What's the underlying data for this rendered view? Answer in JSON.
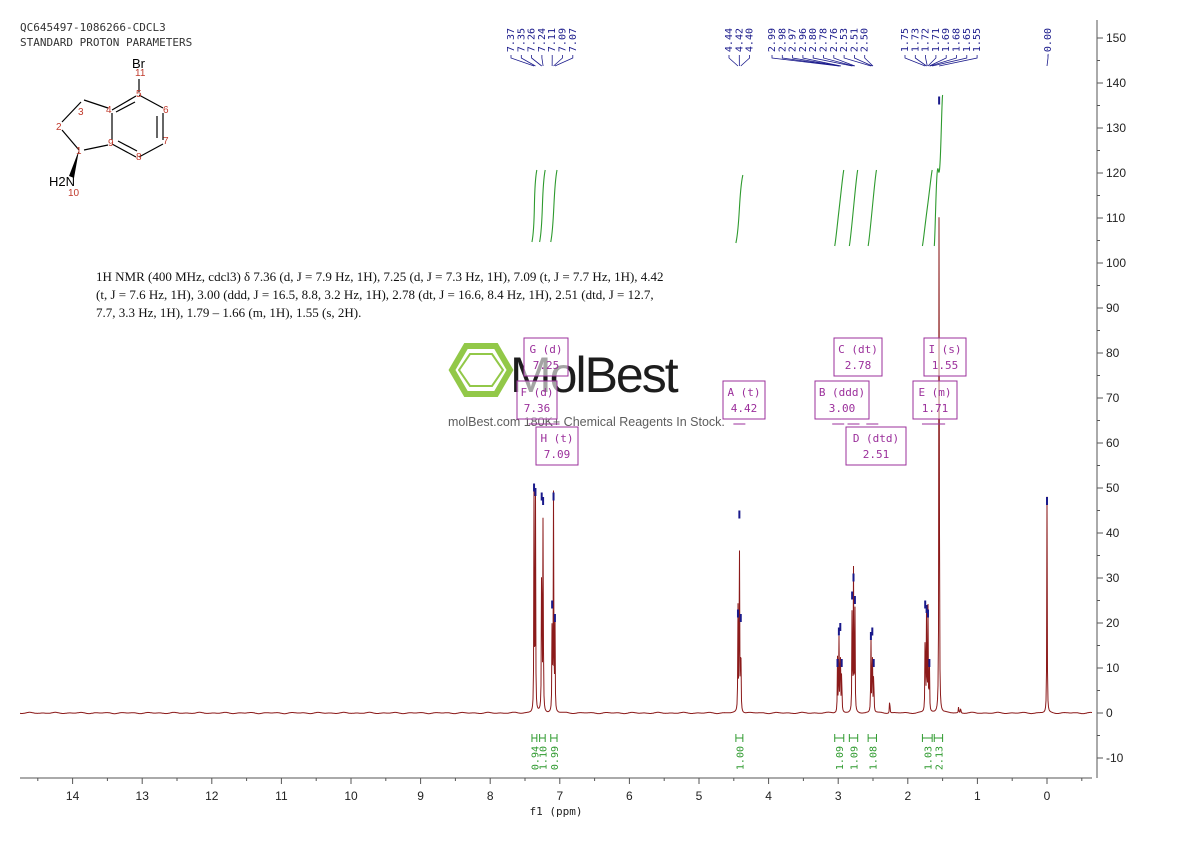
{
  "header": {
    "line1": "QC645497-1086266-CDCL3",
    "line2": "STANDARD PROTON PARAMETERS"
  },
  "molecule": {
    "atom_labels": [
      "Br",
      "11",
      "5",
      "6",
      "7",
      "8",
      "9",
      "4",
      "3",
      "2",
      "1",
      "H2N",
      "10"
    ]
  },
  "nmr_description": "1H NMR (400 MHz, cdcl3) δ 7.36 (d, J = 7.9 Hz, 1H), 7.25 (d, J = 7.3 Hz, 1H), 7.09 (t, J = 7.7 Hz, 1H), 4.42 (t, J = 7.6 Hz, 1H), 3.00 (ddd, J = 16.5, 8.8, 3.2 Hz, 1H), 2.78 (dt, J = 16.6, 8.4 Hz, 1H), 2.51 (dtd, J = 12.7, 7.7, 3.3 Hz, 1H), 1.79 – 1.66 (m, 1H), 1.55 (s, 2H).",
  "watermark": {
    "brand": "MolBest",
    "tagline": "molBest.com 180K+ Chemical Reagents In Stock."
  },
  "colors": {
    "spectrum": "#8b1a1a",
    "integral": "#2e9a2e",
    "peak_labels": "#1a1a8b",
    "multiplet_box": "#9b2f9b",
    "logo_green": "#8dc63f"
  },
  "chart_data": {
    "type": "line",
    "xlabel": "f1 (ppm)",
    "xlim": [
      14.7,
      -0.6
    ],
    "ylim": [
      -14,
      150
    ],
    "x_ticks": [
      14,
      13,
      12,
      11,
      10,
      9,
      8,
      7,
      6,
      5,
      4,
      3,
      2,
      1,
      0
    ],
    "y_ticks": [
      150,
      140,
      130,
      120,
      110,
      100,
      90,
      80,
      70,
      60,
      50,
      40,
      30,
      20,
      10,
      0,
      -10
    ],
    "peak_labels_group1": [
      "7.37",
      "7.35",
      "7.26",
      "7.24",
      "7.11",
      "7.09",
      "7.07"
    ],
    "peak_labels_group2": [
      "4.44",
      "4.42",
      "4.40"
    ],
    "peak_labels_group3": [
      "2.99",
      "2.98",
      "2.97",
      "2.96",
      "2.80",
      "2.78",
      "2.76",
      "2.53",
      "2.51",
      "2.50"
    ],
    "peak_labels_group4": [
      "1.75",
      "1.73",
      "1.72",
      "1.71",
      "1.69",
      "1.68",
      "1.65",
      "1.55"
    ],
    "peak_labels_group5": [
      "-0.00"
    ],
    "peaks": [
      {
        "ppm": 7.37,
        "height": 51
      },
      {
        "ppm": 7.35,
        "height": 50
      },
      {
        "ppm": 7.26,
        "height": 49
      },
      {
        "ppm": 7.24,
        "height": 48
      },
      {
        "ppm": 7.11,
        "height": 25
      },
      {
        "ppm": 7.09,
        "height": 49
      },
      {
        "ppm": 7.07,
        "height": 22
      },
      {
        "ppm": 4.44,
        "height": 23
      },
      {
        "ppm": 4.42,
        "height": 45
      },
      {
        "ppm": 4.4,
        "height": 22
      },
      {
        "ppm": 3.01,
        "height": 12
      },
      {
        "ppm": 2.99,
        "height": 19
      },
      {
        "ppm": 2.97,
        "height": 20
      },
      {
        "ppm": 2.95,
        "height": 12
      },
      {
        "ppm": 2.8,
        "height": 27
      },
      {
        "ppm": 2.78,
        "height": 31
      },
      {
        "ppm": 2.76,
        "height": 26
      },
      {
        "ppm": 2.53,
        "height": 18
      },
      {
        "ppm": 2.51,
        "height": 19
      },
      {
        "ppm": 2.49,
        "height": 12
      },
      {
        "ppm": 2.26,
        "height": 4
      },
      {
        "ppm": 1.75,
        "height": 25
      },
      {
        "ppm": 1.73,
        "height": 24
      },
      {
        "ppm": 1.71,
        "height": 23
      },
      {
        "ppm": 1.69,
        "height": 12
      },
      {
        "ppm": 1.55,
        "height": 137
      },
      {
        "ppm": 1.27,
        "height": 1.5
      },
      {
        "ppm": 1.24,
        "height": 1.5
      },
      {
        "ppm": 0.0,
        "height": 48
      }
    ],
    "integral_curves": [
      {
        "from": 7.4,
        "to": 7.33,
        "value": "0.94"
      },
      {
        "from": 7.29,
        "to": 7.21,
        "value": "1.10"
      },
      {
        "from": 7.13,
        "to": 7.04,
        "value": "0.99"
      },
      {
        "from": 4.47,
        "to": 4.37,
        "value": "1.00"
      },
      {
        "from": 3.05,
        "to": 2.92,
        "value": "1.09"
      },
      {
        "from": 2.84,
        "to": 2.72,
        "value": "1.09"
      },
      {
        "from": 2.57,
        "to": 2.45,
        "value": "1.08"
      },
      {
        "from": 1.79,
        "to": 1.65,
        "value": "1.03"
      },
      {
        "from": 1.62,
        "to": 1.5,
        "value": "2.13"
      }
    ],
    "multiplets": [
      {
        "id": "G",
        "type": "d",
        "shift": "7.25"
      },
      {
        "id": "F",
        "type": "d",
        "shift": "7.36"
      },
      {
        "id": "H",
        "type": "t",
        "shift": "7.09"
      },
      {
        "id": "A",
        "type": "t",
        "shift": "4.42"
      },
      {
        "id": "B",
        "type": "ddd",
        "shift": "3.00"
      },
      {
        "id": "C",
        "type": "dt",
        "shift": "2.78"
      },
      {
        "id": "D",
        "type": "dtd",
        "shift": "2.51"
      },
      {
        "id": "E",
        "type": "m",
        "shift": "1.71"
      },
      {
        "id": "I",
        "type": "s",
        "shift": "1.55"
      }
    ]
  }
}
